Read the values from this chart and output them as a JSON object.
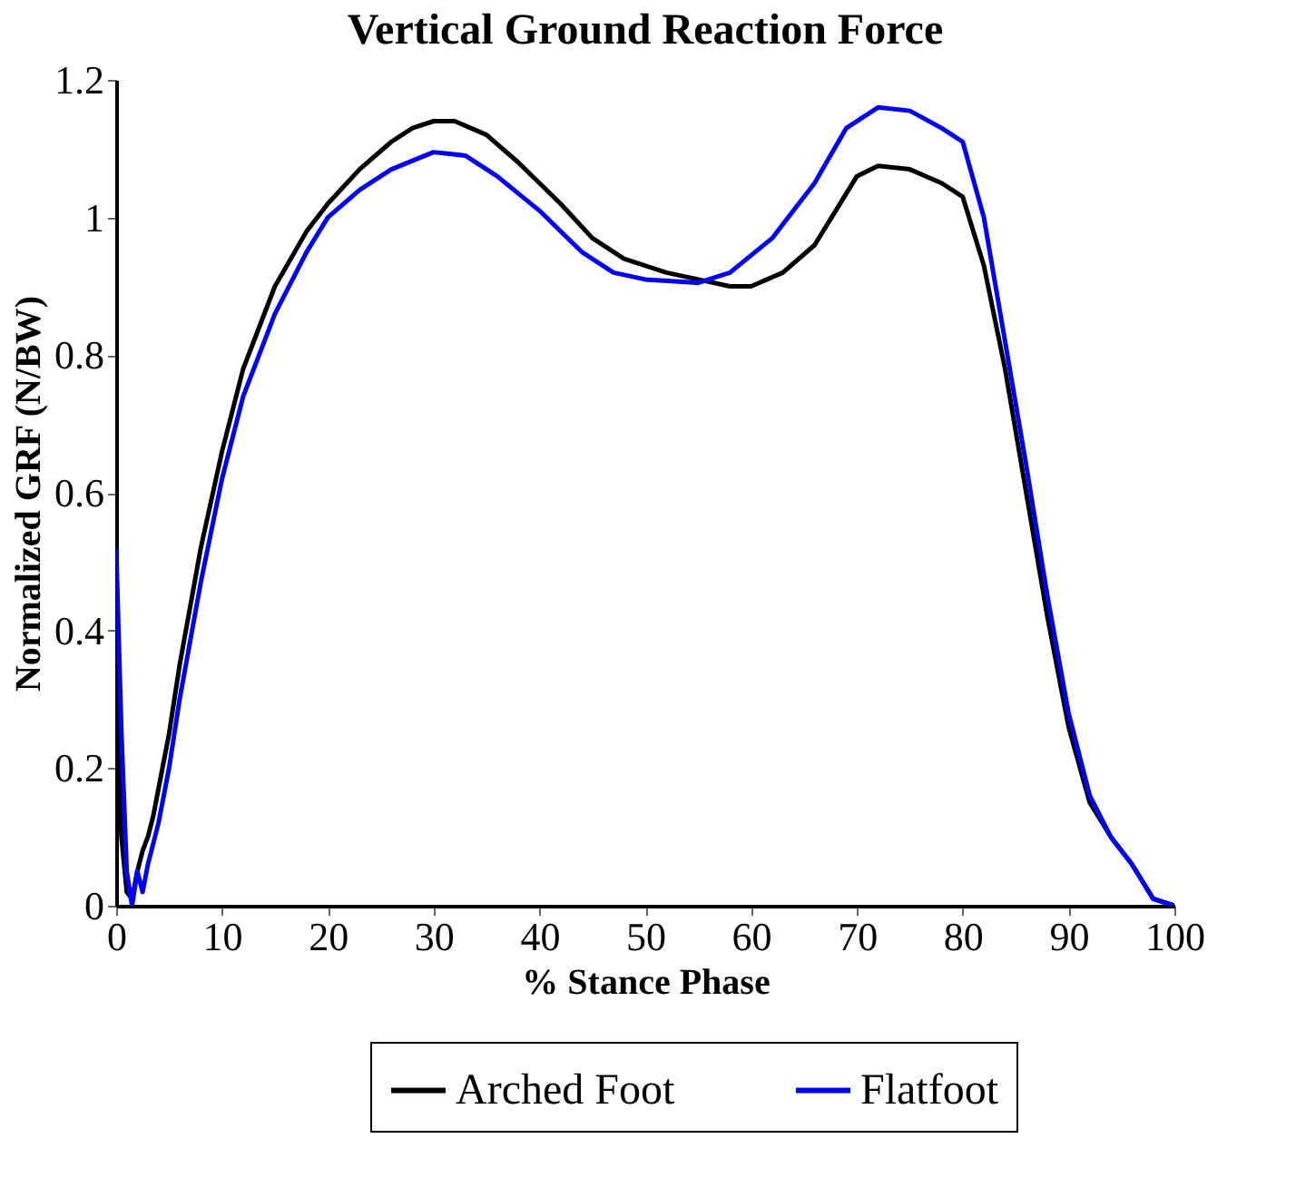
{
  "chart_data": {
    "type": "line",
    "title": "Vertical Ground Reaction Force",
    "xlabel": "% Stance Phase",
    "ylabel": "Normalized GRF (N/BW)",
    "xlim": [
      0,
      100
    ],
    "xticks": [
      0,
      10,
      20,
      30,
      40,
      50,
      60,
      70,
      80,
      90,
      100
    ],
    "ylim": [
      0,
      1.2
    ],
    "yticks": [
      0,
      0.2,
      0.4,
      0.6,
      0.8,
      1,
      1.2
    ],
    "grid": false,
    "legend": "bottom",
    "line_style": "solid",
    "marker": "none",
    "series": [
      {
        "name": "Arched Foot",
        "color": "#000000",
        "x": [
          0,
          0.5,
          1,
          1.5,
          2,
          2.5,
          3,
          3.5,
          4,
          5,
          6,
          8,
          10,
          12,
          15,
          18,
          20,
          23,
          26,
          28,
          30,
          32,
          35,
          38,
          42,
          45,
          48,
          52,
          55,
          58,
          60,
          63,
          66,
          68,
          70,
          72,
          75,
          78,
          80,
          82,
          84,
          86,
          88,
          90,
          92,
          94,
          96,
          98,
          100
        ],
        "values": [
          0.3,
          0.1,
          0.02,
          0.01,
          0.05,
          0.08,
          0.1,
          0.13,
          0.17,
          0.25,
          0.35,
          0.52,
          0.66,
          0.78,
          0.9,
          0.98,
          1.02,
          1.07,
          1.11,
          1.13,
          1.14,
          1.14,
          1.12,
          1.08,
          1.02,
          0.97,
          0.94,
          0.92,
          0.91,
          0.9,
          0.9,
          0.92,
          0.96,
          1.01,
          1.06,
          1.075,
          1.07,
          1.05,
          1.03,
          0.93,
          0.78,
          0.6,
          0.42,
          0.26,
          0.15,
          0.1,
          0.06,
          0.01,
          0
        ]
      },
      {
        "name": "Flatfoot",
        "color": "#0000ff",
        "x": [
          0,
          0.5,
          1,
          1.5,
          2,
          2.5,
          3,
          4,
          5,
          6,
          8,
          10,
          12,
          15,
          18,
          20,
          23,
          26,
          30,
          33,
          36,
          40,
          44,
          47,
          50,
          55,
          58,
          62,
          66,
          69,
          72,
          75,
          78,
          80,
          82,
          84,
          86,
          88,
          90,
          92,
          94,
          96,
          98,
          100
        ],
        "values": [
          0.52,
          0.25,
          0.05,
          0.0,
          0.05,
          0.02,
          0.06,
          0.12,
          0.2,
          0.3,
          0.47,
          0.62,
          0.74,
          0.86,
          0.95,
          1.0,
          1.04,
          1.07,
          1.095,
          1.09,
          1.06,
          1.01,
          0.95,
          0.92,
          0.91,
          0.905,
          0.92,
          0.97,
          1.05,
          1.13,
          1.16,
          1.155,
          1.13,
          1.11,
          1.0,
          0.82,
          0.64,
          0.45,
          0.28,
          0.16,
          0.1,
          0.06,
          0.01,
          0
        ]
      }
    ]
  }
}
